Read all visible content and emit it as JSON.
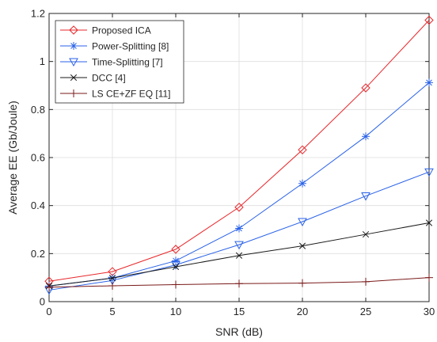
{
  "chart_data": {
    "type": "line",
    "xlabel": "SNR (dB)",
    "ylabel": "Average EE (Gb/Joule)",
    "x": [
      0,
      5,
      10,
      15,
      20,
      25,
      30
    ],
    "xlim": [
      0,
      30
    ],
    "ylim": [
      0,
      1.2
    ],
    "x_ticks": [
      0,
      5,
      10,
      15,
      20,
      25,
      30
    ],
    "y_ticks": [
      0,
      0.2,
      0.4,
      0.6,
      0.8,
      1,
      1.2
    ],
    "x_tick_labels": [
      "0",
      "5",
      "10",
      "15",
      "20",
      "25",
      "30"
    ],
    "y_tick_labels": [
      "0",
      "0.2",
      "0.4",
      "0.6",
      "0.8",
      "1",
      "1.2"
    ],
    "grid": true,
    "legend_position": "top-left",
    "series": [
      {
        "name": "Proposed ICA",
        "color": "#e8262a",
        "marker": "diamond",
        "values": [
          0.085,
          0.125,
          0.218,
          0.393,
          0.632,
          0.89,
          1.172
        ]
      },
      {
        "name": "Power-Splitting [8]",
        "color": "#2a62e8",
        "marker": "asterisk",
        "values": [
          0.065,
          0.098,
          0.17,
          0.305,
          0.492,
          0.688,
          0.912
        ]
      },
      {
        "name": "Time-Splitting [7]",
        "color": "#2a62e8",
        "marker": "triangle-down",
        "values": [
          0.048,
          0.088,
          0.153,
          0.237,
          0.333,
          0.44,
          0.54
        ]
      },
      {
        "name": "DCC [4]",
        "color": "#1a1a1a",
        "marker": "x",
        "values": [
          0.065,
          0.098,
          0.145,
          0.192,
          0.232,
          0.28,
          0.328
        ]
      },
      {
        "name": "LS CE+ZF EQ [11]",
        "color": "#7a1a1a",
        "marker": "plus",
        "values": [
          0.06,
          0.066,
          0.071,
          0.075,
          0.077,
          0.083,
          0.1
        ]
      }
    ]
  }
}
